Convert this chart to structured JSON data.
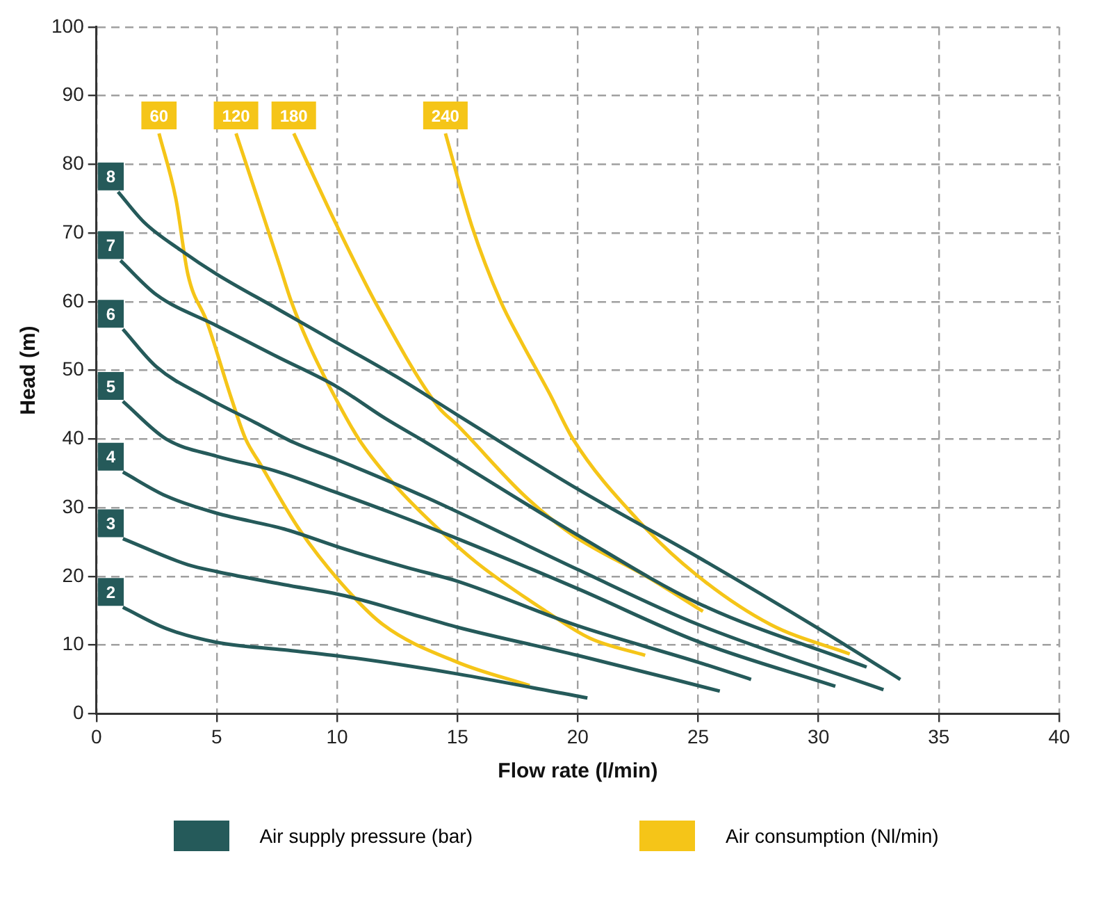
{
  "chart_data": {
    "type": "line",
    "xlabel": "Flow rate (l/min)",
    "ylabel": "Head (m)",
    "xlim": [
      0,
      40
    ],
    "ylim": [
      0,
      100
    ],
    "xticks": [
      0,
      5,
      10,
      15,
      20,
      25,
      30,
      35,
      40
    ],
    "yticks": [
      0,
      10,
      20,
      30,
      40,
      50,
      60,
      70,
      80,
      90,
      100
    ],
    "grid": true,
    "marker": "none",
    "line_style": "solid",
    "annotations": [
      "Air supply pressure (bar)",
      "Air consumption (Nl/min)"
    ],
    "series": [
      {
        "name": "8",
        "color": "#255a5a",
        "x": [
          0.9,
          2,
          3.5,
          5,
          7.5,
          10,
          12.5,
          15,
          20,
          25,
          30,
          33.4
        ],
        "values": [
          76,
          71.5,
          67.5,
          64,
          59,
          54,
          49,
          43.5,
          32.7,
          22.8,
          12.4,
          5
        ]
      },
      {
        "name": "7",
        "color": "#255a5a",
        "x": [
          1,
          2.5,
          5,
          7.5,
          10,
          12,
          13.7,
          20,
          25,
          32
        ],
        "values": [
          66,
          61,
          56.5,
          52,
          47.6,
          43,
          39.5,
          26,
          16.1,
          6.8
        ]
      },
      {
        "name": "6",
        "color": "#255a5a",
        "x": [
          1.1,
          2.5,
          4.6,
          6.6,
          8.2,
          10,
          13.7,
          20,
          25,
          32.7
        ],
        "values": [
          56,
          50.5,
          46,
          42.4,
          39.5,
          37,
          31.5,
          21,
          13,
          3.5
        ]
      },
      {
        "name": "5",
        "color": "#255a5a",
        "x": [
          1.1,
          2.9,
          5,
          7.4,
          9.9,
          12.3,
          15,
          20,
          25,
          30.7
        ],
        "values": [
          45.5,
          40,
          37.5,
          35.4,
          32.3,
          29.2,
          25.5,
          18.2,
          10.5,
          4
        ]
      },
      {
        "name": "4",
        "color": "#255a5a",
        "x": [
          1.1,
          2.9,
          5,
          7.8,
          10.3,
          12.9,
          15,
          20,
          25,
          27.2
        ],
        "values": [
          35.2,
          31.7,
          29.2,
          26.9,
          24,
          21.3,
          19.3,
          12.8,
          7.5,
          5
        ]
      },
      {
        "name": "3",
        "color": "#255a5a",
        "x": [
          1.1,
          3.8,
          5,
          7.8,
          10.3,
          12.9,
          15,
          20,
          25.9
        ],
        "values": [
          25.5,
          21.7,
          20.7,
          18.8,
          17.2,
          14.7,
          12.6,
          8.5,
          3.3
        ]
      },
      {
        "name": "2",
        "color": "#255a5a",
        "x": [
          1.1,
          2.9,
          5,
          7.8,
          10.3,
          12.9,
          15,
          20.4
        ],
        "values": [
          15.5,
          12.4,
          10.4,
          9.3,
          8.3,
          7,
          5.8,
          2.3
        ]
      },
      {
        "name": "60",
        "color": "#f5c518",
        "x": [
          2.6,
          3.3,
          3.8,
          4.6,
          5.6,
          6.2,
          6.8,
          8.4,
          10.1,
          11.9,
          15,
          18
        ],
        "values": [
          84.5,
          75,
          64,
          57,
          46,
          40,
          36.4,
          27,
          19.3,
          13,
          7.5,
          4.1
        ]
      },
      {
        "name": "120",
        "color": "#f5c518",
        "x": [
          5.8,
          6.7,
          7.6,
          8.1,
          8.8,
          9.6,
          10.9,
          12.3,
          13.7,
          15.8,
          18.6,
          20.5,
          22.8
        ],
        "values": [
          84.5,
          75,
          65.4,
          60,
          54,
          48.2,
          40,
          33.7,
          28.6,
          22,
          15.1,
          11,
          8.5
        ]
      },
      {
        "name": "180",
        "color": "#f5c518",
        "x": [
          8.2,
          10,
          11.7,
          14.2,
          15,
          17.8,
          19.8,
          22.9,
          25.2
        ],
        "values": [
          84.5,
          71,
          59.2,
          44.7,
          42,
          31.7,
          26,
          19.9,
          14.9
        ]
      },
      {
        "name": "240",
        "color": "#f5c518",
        "x": [
          14.5,
          15.6,
          16.8,
          17.6,
          18.8,
          19.8,
          22.5,
          24.9,
          28,
          31.3
        ],
        "values": [
          84.5,
          71,
          60,
          54.5,
          46.8,
          40,
          28.2,
          20.3,
          13,
          8.7
        ]
      }
    ]
  }
}
